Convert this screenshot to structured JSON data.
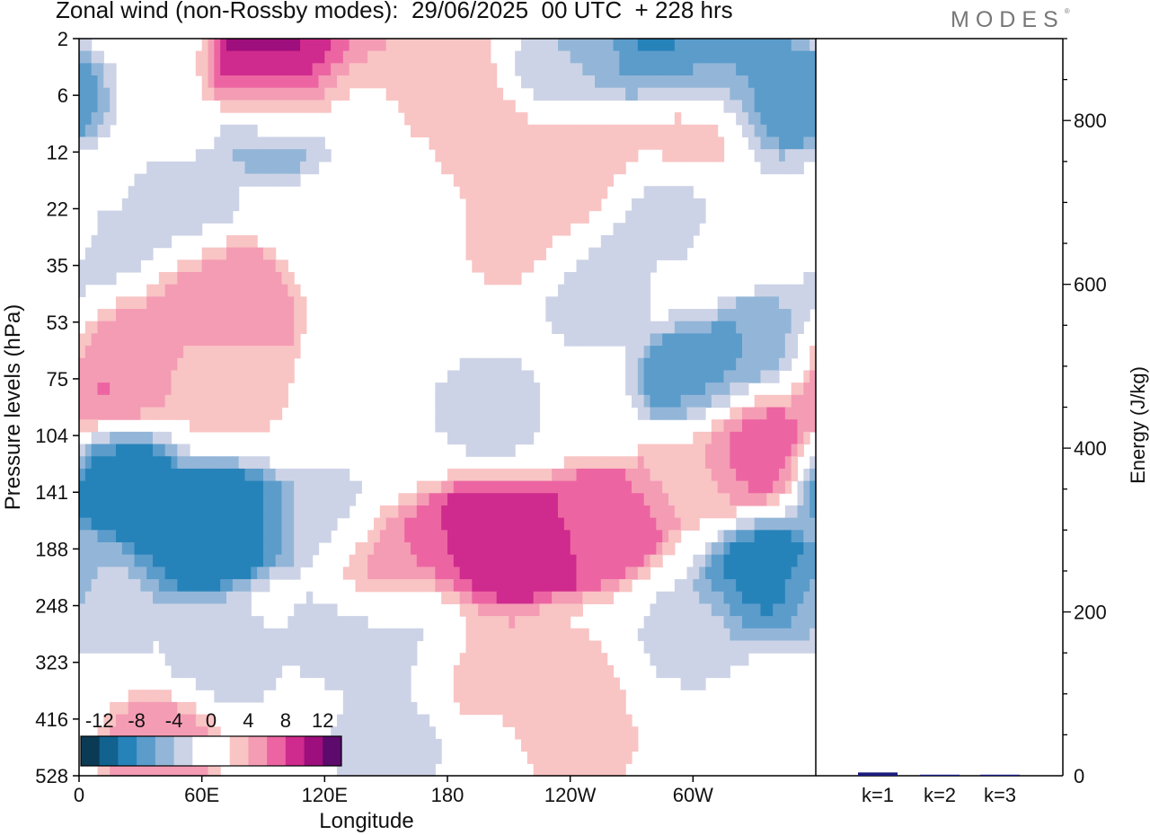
{
  "title": "Zonal wind (non-Rossby modes):  29/06/2025  00 UTC  + 228 hrs",
  "brand": "MODES",
  "brand_mark": "®",
  "chart_data": [
    {
      "type": "heatmap",
      "xlabel": "Longitude",
      "ylabel": "Pressure levels (hPa)",
      "x_ticks": [
        "0",
        "60E",
        "120E",
        "180",
        "120W",
        "60W"
      ],
      "y_ticks": [
        "2",
        "6",
        "12",
        "22",
        "35",
        "53",
        "75",
        "104",
        "141",
        "188",
        "248",
        "323",
        "416",
        "528"
      ],
      "colorbar": {
        "labels": [
          "-12",
          "-8",
          "-4",
          "0",
          "4",
          "8",
          "12"
        ],
        "levels": [
          -14,
          -12,
          -10,
          -8,
          -6,
          -4,
          -2,
          2,
          4,
          6,
          8,
          10,
          12,
          14
        ],
        "colors": [
          "#0b3a55",
          "#11628e",
          "#2683b9",
          "#5b9ccb",
          "#93b6d8",
          "#cdd3e6",
          "#ffffff",
          "#ffffff",
          "#f9c4c4",
          "#f49cb4",
          "#ec65a2",
          "#cf2a8d",
          "#9e0e7c",
          "#5c0a6b"
        ]
      },
      "regions": [
        {
          "lon": 20,
          "lev": 5.5,
          "value": 7
        },
        {
          "lon": 70,
          "lev": 4.5,
          "value": 6
        },
        {
          "lon": 95,
          "lev": 0.8,
          "value": 9
        },
        {
          "lon": 100,
          "lev": 0.3,
          "value": 12
        },
        {
          "lon": 115,
          "lev": 0.3,
          "value": 10
        },
        {
          "lon": 140,
          "lev": 0.8,
          "value": 6
        },
        {
          "lon": 175,
          "lev": 0.5,
          "value": 4
        },
        {
          "lon": 245,
          "lev": 2.2,
          "value": 4
        },
        {
          "lon": 300,
          "lev": 1.5,
          "value": 5
        },
        {
          "lon": 335,
          "lev": 3.5,
          "value": 3
        },
        {
          "lon": 200,
          "lev": 1.8,
          "value": 3
        },
        {
          "lon": 215,
          "lev": 3.5,
          "value": 3
        },
        {
          "lon": 35,
          "lev": 5.8,
          "value": 3
        },
        {
          "lon": 75,
          "lev": 6.2,
          "value": 3
        },
        {
          "lon": 50,
          "lev": 3.0,
          "value": -3
        },
        {
          "lon": 95,
          "lev": 1.5,
          "value": -6
        },
        {
          "lon": 135,
          "lev": 1.0,
          "value": -4
        },
        {
          "lon": 240,
          "lev": 0.5,
          "value": -4
        },
        {
          "lon": 290,
          "lev": 0.3,
          "value": -9
        },
        {
          "lon": 310,
          "lev": 0.6,
          "value": -6
        },
        {
          "lon": 345,
          "lev": 1.0,
          "value": -8
        },
        {
          "lon": 330,
          "lev": 3.0,
          "value": -3
        },
        {
          "lon": 285,
          "lev": 3.0,
          "value": -3
        },
        {
          "lon": 250,
          "lev": 4.5,
          "value": -3
        },
        {
          "lon": 340,
          "lev": 5.3,
          "value": -6
        },
        {
          "lon": 300,
          "lev": 6.0,
          "value": -7
        },
        {
          "lon": 200,
          "lev": 6.5,
          "value": -3
        },
        {
          "lon": 5,
          "lev": 4.0,
          "value": -3
        },
        {
          "lon": 15,
          "lev": 6.0,
          "value": 7
        },
        {
          "lon": 80,
          "lev": 5.0,
          "value": 4
        },
        {
          "lon": 20,
          "lev": 7.8,
          "value": -10
        },
        {
          "lon": 55,
          "lev": 8.8,
          "value": -10
        },
        {
          "lon": 75,
          "lev": 8.5,
          "value": -9
        },
        {
          "lon": 120,
          "lev": 8.5,
          "value": -3
        },
        {
          "lon": 15,
          "lev": 10.0,
          "value": -3
        },
        {
          "lon": 70,
          "lev": 11.0,
          "value": -3
        },
        {
          "lon": 130,
          "lev": 10.5,
          "value": -3
        },
        {
          "lon": 160,
          "lev": 10.5,
          "value": -3
        },
        {
          "lon": 150,
          "lev": 9.3,
          "value": 6
        },
        {
          "lon": 190,
          "lev": 8.8,
          "value": 8
        },
        {
          "lon": 210,
          "lev": 9.0,
          "value": 10
        },
        {
          "lon": 240,
          "lev": 8.8,
          "value": 8
        },
        {
          "lon": 260,
          "lev": 8.5,
          "value": 7
        },
        {
          "lon": 235,
          "lev": 11.3,
          "value": 3
        },
        {
          "lon": 245,
          "lev": 12.4,
          "value": 3
        },
        {
          "lon": 195,
          "lev": 11.0,
          "value": 3
        },
        {
          "lon": 330,
          "lev": 7.2,
          "value": 8
        },
        {
          "lon": 300,
          "lev": 7.7,
          "value": 3
        },
        {
          "lon": 335,
          "lev": 9.5,
          "value": -9
        },
        {
          "lon": 300,
          "lev": 10.5,
          "value": -3
        },
        {
          "lon": 40,
          "lev": 12.5,
          "value": 6
        },
        {
          "lon": 150,
          "lev": 12.5,
          "value": -3
        }
      ]
    },
    {
      "type": "bar",
      "ylabel": "Energy (J/kg)",
      "categories": [
        "k=1",
        "k=2",
        "k=3"
      ],
      "values": [
        4,
        1,
        0.5
      ],
      "ylim": [
        0,
        900
      ],
      "y_ticks": [
        0,
        200,
        400,
        600,
        800
      ],
      "bar_color": "#1a1a80"
    }
  ]
}
